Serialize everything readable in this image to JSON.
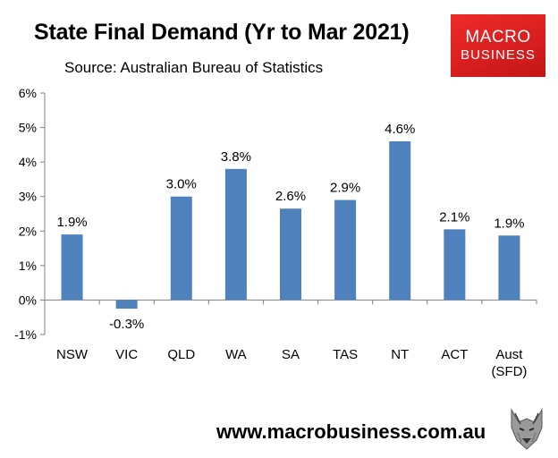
{
  "header": {
    "title": "State Final Demand (Yr to Mar 2021)",
    "source": "Source: Australian Bureau of Statistics"
  },
  "logo": {
    "line1": "MACRO",
    "line2": "BUSINESS"
  },
  "footer": {
    "url": "www.macrobusiness.com.au"
  },
  "colors": {
    "bar": "#4f81bd",
    "logo": "#e52424"
  },
  "chart_data": {
    "type": "bar",
    "categories": [
      "NSW",
      "VIC",
      "QLD",
      "WA",
      "SA",
      "TAS",
      "NT",
      "ACT",
      "Aust (SFD)"
    ],
    "values": [
      1.9,
      -0.3,
      3.0,
      3.8,
      2.6,
      2.9,
      4.6,
      2.1,
      1.9
    ],
    "bar_values": [
      1.9,
      -0.25,
      3.0,
      3.8,
      2.65,
      2.9,
      4.6,
      2.05,
      1.87
    ],
    "data_labels": [
      "1.9%",
      "-0.3%",
      "3.0%",
      "3.8%",
      "2.6%",
      "2.9%",
      "4.6%",
      "2.1%",
      "1.9%"
    ],
    "ylim": [
      -1,
      6
    ],
    "yticks": [
      -1,
      0,
      1,
      2,
      3,
      4,
      5,
      6
    ],
    "ytick_labels": [
      "-1%",
      "0%",
      "1%",
      "2%",
      "3%",
      "4%",
      "5%",
      "6%"
    ],
    "grid": false,
    "legend": "none"
  }
}
